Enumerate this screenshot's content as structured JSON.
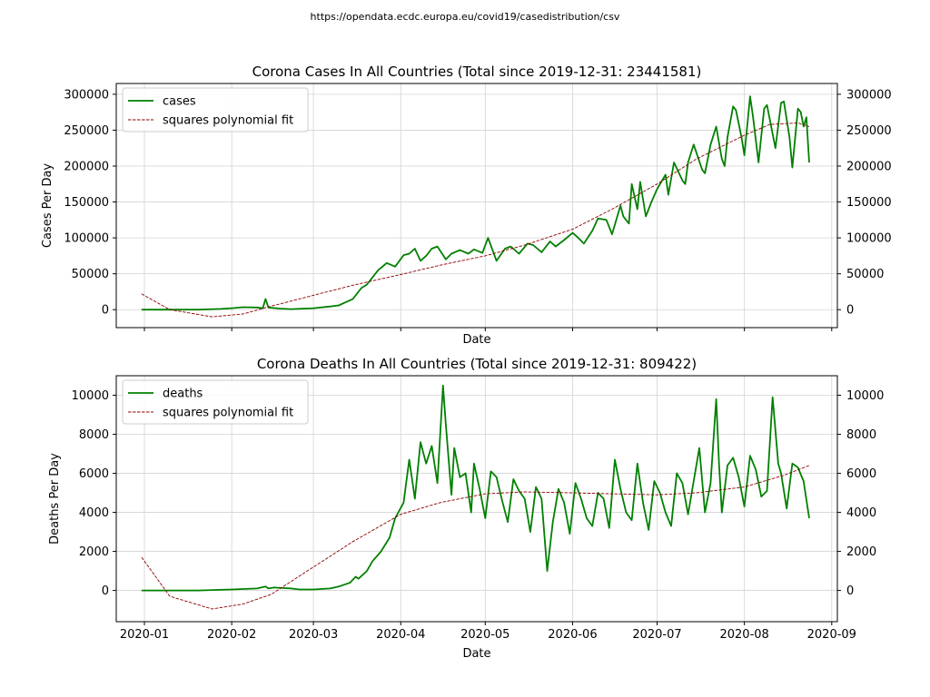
{
  "source_url": "https://opendata.ecdc.europa.eu/covid19/casedistribution/csv",
  "colors": {
    "data_line": "#008000",
    "fit_line": "#8b0000",
    "grid": "#d3d3d3",
    "axis": "#000000"
  },
  "chart_data": [
    {
      "type": "line",
      "title": "Corona Cases In All Countries (Total since 2019-12-31: 23441581)",
      "xlabel": "Date",
      "ylabel": "Cases Per Day",
      "show_x_ticklabels": false,
      "x_range": [
        "2019-12-22",
        "2020-09-03"
      ],
      "ylim": [
        -25000,
        315000
      ],
      "yticks": [
        0,
        50000,
        100000,
        150000,
        200000,
        250000,
        300000
      ],
      "xticks": [
        "2020-01",
        "2020-02",
        "2020-03",
        "2020-04",
        "2020-05",
        "2020-06",
        "2020-07",
        "2020-08",
        "2020-09"
      ],
      "grid": true,
      "right_axis": true,
      "legend": {
        "placement": "top-left",
        "entries": [
          "cases",
          "squares polynomial fit"
        ]
      },
      "series": [
        {
          "name": "cases",
          "style": "solid",
          "x": [
            "2019-12-31",
            "2020-01-10",
            "2020-01-20",
            "2020-01-28",
            "2020-02-01",
            "2020-02-05",
            "2020-02-10",
            "2020-02-12",
            "2020-02-13",
            "2020-02-14",
            "2020-02-18",
            "2020-02-22",
            "2020-03-01",
            "2020-03-07",
            "2020-03-10",
            "2020-03-15",
            "2020-03-18",
            "2020-03-20",
            "2020-03-22",
            "2020-03-24",
            "2020-03-27",
            "2020-03-30",
            "2020-04-02",
            "2020-04-04",
            "2020-04-06",
            "2020-04-08",
            "2020-04-10",
            "2020-04-12",
            "2020-04-14",
            "2020-04-17",
            "2020-04-19",
            "2020-04-22",
            "2020-04-25",
            "2020-04-27",
            "2020-04-30",
            "2020-05-02",
            "2020-05-05",
            "2020-05-08",
            "2020-05-10",
            "2020-05-13",
            "2020-05-16",
            "2020-05-18",
            "2020-05-21",
            "2020-05-24",
            "2020-05-26",
            "2020-05-29",
            "2020-06-01",
            "2020-06-03",
            "2020-06-05",
            "2020-06-08",
            "2020-06-10",
            "2020-06-13",
            "2020-06-15",
            "2020-06-18",
            "2020-06-19",
            "2020-06-21",
            "2020-06-22",
            "2020-06-24",
            "2020-06-25",
            "2020-06-27",
            "2020-06-29",
            "2020-07-01",
            "2020-07-04",
            "2020-07-05",
            "2020-07-07",
            "2020-07-10",
            "2020-07-11",
            "2020-07-12",
            "2020-07-14",
            "2020-07-17",
            "2020-07-18",
            "2020-07-20",
            "2020-07-22",
            "2020-07-24",
            "2020-07-25",
            "2020-07-26",
            "2020-07-28",
            "2020-07-29",
            "2020-07-31",
            "2020-08-01",
            "2020-08-03",
            "2020-08-04",
            "2020-08-06",
            "2020-08-08",
            "2020-08-09",
            "2020-08-10",
            "2020-08-12",
            "2020-08-14",
            "2020-08-15",
            "2020-08-17",
            "2020-08-18",
            "2020-08-20",
            "2020-08-21",
            "2020-08-22",
            "2020-08-23",
            "2020-08-24"
          ],
          "values": [
            0,
            0,
            0,
            1000,
            2000,
            3500,
            3000,
            2000,
            15000,
            3000,
            1500,
            800,
            2000,
            4500,
            6000,
            15000,
            30000,
            35000,
            45000,
            55000,
            65000,
            60000,
            76000,
            78000,
            85000,
            68000,
            75000,
            85000,
            88000,
            70000,
            78000,
            83000,
            78000,
            84000,
            79000,
            100000,
            68000,
            85000,
            88000,
            78000,
            92000,
            90000,
            80000,
            95000,
            88000,
            97000,
            107000,
            100000,
            92000,
            110000,
            127000,
            125000,
            105000,
            145000,
            130000,
            120000,
            175000,
            140000,
            178000,
            130000,
            150000,
            168000,
            188000,
            160000,
            205000,
            180000,
            175000,
            205000,
            230000,
            195000,
            190000,
            230000,
            255000,
            210000,
            200000,
            240000,
            283000,
            278000,
            240000,
            215000,
            297000,
            270000,
            205000,
            280000,
            285000,
            265000,
            225000,
            288000,
            290000,
            240000,
            198000,
            280000,
            275000,
            255000,
            268000,
            205000
          ]
        },
        {
          "name": "squares polynomial fit",
          "style": "dashed",
          "x": [
            "2019-12-31",
            "2020-01-10",
            "2020-01-25",
            "2020-02-05",
            "2020-02-15",
            "2020-03-01",
            "2020-03-15",
            "2020-04-01",
            "2020-04-15",
            "2020-05-01",
            "2020-05-15",
            "2020-06-01",
            "2020-06-15",
            "2020-07-01",
            "2020-07-15",
            "2020-08-01",
            "2020-08-10",
            "2020-08-20",
            "2020-08-24"
          ],
          "values": [
            22000,
            0,
            -10000,
            -6000,
            5000,
            20000,
            34000,
            49000,
            62000,
            75000,
            90000,
            112000,
            140000,
            175000,
            210000,
            243000,
            258000,
            260000,
            255000
          ]
        }
      ]
    },
    {
      "type": "line",
      "title": "Corona Deaths In All Countries (Total since 2019-12-31: 809422)",
      "xlabel": "Date",
      "ylabel": "Deaths Per Day",
      "show_x_ticklabels": true,
      "x_range": [
        "2019-12-22",
        "2020-09-03"
      ],
      "ylim": [
        -1600,
        11000
      ],
      "yticks": [
        0,
        2000,
        4000,
        6000,
        8000,
        10000
      ],
      "xticks": [
        "2020-01",
        "2020-02",
        "2020-03",
        "2020-04",
        "2020-05",
        "2020-06",
        "2020-07",
        "2020-08",
        "2020-09"
      ],
      "grid": true,
      "right_axis": true,
      "legend": {
        "placement": "top-left",
        "entries": [
          "deaths",
          "squares polynomial fit"
        ]
      },
      "series": [
        {
          "name": "deaths",
          "style": "solid",
          "x": [
            "2019-12-31",
            "2020-01-20",
            "2020-02-01",
            "2020-02-10",
            "2020-02-13",
            "2020-02-14",
            "2020-02-16",
            "2020-02-22",
            "2020-02-25",
            "2020-03-01",
            "2020-03-07",
            "2020-03-10",
            "2020-03-14",
            "2020-03-16",
            "2020-03-17",
            "2020-03-20",
            "2020-03-22",
            "2020-03-25",
            "2020-03-28",
            "2020-03-30",
            "2020-04-02",
            "2020-04-04",
            "2020-04-06",
            "2020-04-08",
            "2020-04-10",
            "2020-04-12",
            "2020-04-14",
            "2020-04-16",
            "2020-04-17",
            "2020-04-19",
            "2020-04-20",
            "2020-04-22",
            "2020-04-24",
            "2020-04-26",
            "2020-04-27",
            "2020-04-29",
            "2020-05-01",
            "2020-05-03",
            "2020-05-05",
            "2020-05-07",
            "2020-05-09",
            "2020-05-11",
            "2020-05-13",
            "2020-05-15",
            "2020-05-17",
            "2020-05-19",
            "2020-05-21",
            "2020-05-23",
            "2020-05-25",
            "2020-05-27",
            "2020-05-29",
            "2020-05-31",
            "2020-06-02",
            "2020-06-04",
            "2020-06-06",
            "2020-06-08",
            "2020-06-10",
            "2020-06-12",
            "2020-06-14",
            "2020-06-16",
            "2020-06-18",
            "2020-06-20",
            "2020-06-22",
            "2020-06-24",
            "2020-06-26",
            "2020-06-28",
            "2020-06-30",
            "2020-07-02",
            "2020-07-04",
            "2020-07-06",
            "2020-07-08",
            "2020-07-10",
            "2020-07-12",
            "2020-07-14",
            "2020-07-16",
            "2020-07-18",
            "2020-07-20",
            "2020-07-22",
            "2020-07-23",
            "2020-07-24",
            "2020-07-26",
            "2020-07-28",
            "2020-07-30",
            "2020-08-01",
            "2020-08-03",
            "2020-08-05",
            "2020-08-07",
            "2020-08-09",
            "2020-08-11",
            "2020-08-13",
            "2020-08-14",
            "2020-08-16",
            "2020-08-18",
            "2020-08-20",
            "2020-08-22",
            "2020-08-24"
          ],
          "values": [
            0,
            0,
            50,
            100,
            200,
            100,
            150,
            100,
            50,
            50,
            100,
            200,
            400,
            700,
            600,
            1000,
            1500,
            2000,
            2700,
            3700,
            4500,
            6700,
            4700,
            7600,
            6500,
            7400,
            5500,
            10500,
            8500,
            4900,
            7300,
            5800,
            6000,
            4000,
            6500,
            5200,
            3700,
            6100,
            5800,
            4600,
            3500,
            5700,
            5100,
            4700,
            3000,
            5300,
            4700,
            1000,
            3500,
            5200,
            4500,
            2900,
            5500,
            4700,
            3700,
            3300,
            5000,
            4700,
            3200,
            6700,
            5200,
            4000,
            3600,
            6500,
            4500,
            3100,
            5600,
            5000,
            4000,
            3300,
            6000,
            5500,
            3900,
            5600,
            7300,
            4000,
            5500,
            9800,
            6500,
            4000,
            6400,
            6800,
            5800,
            4300,
            6900,
            6200,
            4800,
            5100,
            9900,
            6500,
            6000,
            4200,
            6500,
            6300,
            5600,
            3700
          ]
        },
        {
          "name": "squares polynomial fit",
          "style": "dashed",
          "x": [
            "2019-12-31",
            "2020-01-10",
            "2020-01-25",
            "2020-02-05",
            "2020-02-15",
            "2020-03-01",
            "2020-03-15",
            "2020-04-01",
            "2020-04-15",
            "2020-05-01",
            "2020-05-15",
            "2020-06-01",
            "2020-06-15",
            "2020-07-01",
            "2020-07-15",
            "2020-08-01",
            "2020-08-15",
            "2020-08-24"
          ],
          "values": [
            1700,
            -300,
            -950,
            -700,
            -200,
            1200,
            2500,
            3900,
            4500,
            4950,
            5050,
            5000,
            4950,
            4900,
            5000,
            5300,
            5900,
            6400
          ]
        }
      ]
    }
  ]
}
